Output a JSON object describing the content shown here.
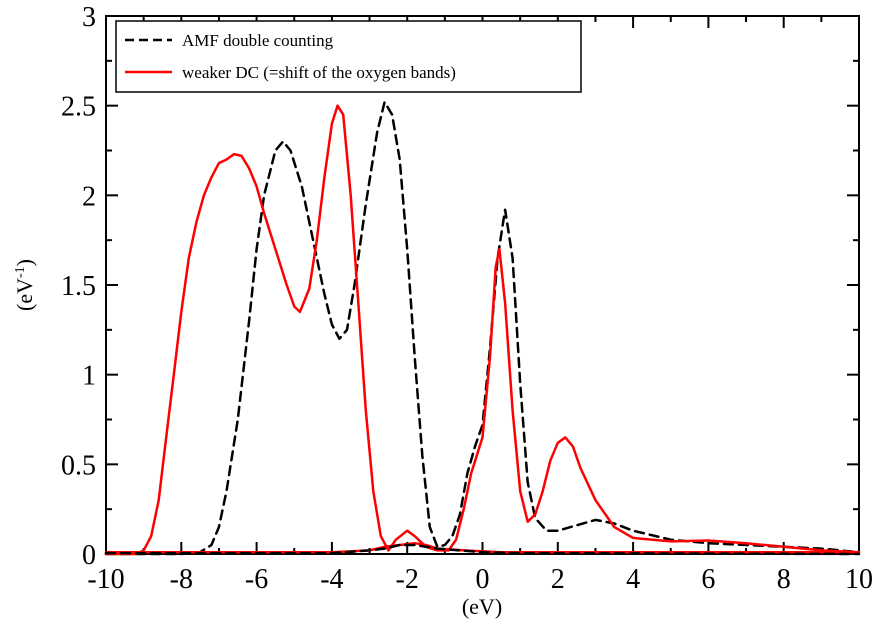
{
  "chart_data": {
    "type": "line",
    "xlabel": "(eV)",
    "ylabel": "(eV",
    "ylabel_sup": "-1",
    "ylabel_close": ")",
    "xlim": [
      -10,
      10
    ],
    "ylim": [
      0,
      3
    ],
    "x_ticks": [
      "-10",
      "-8",
      "-6",
      "-4",
      "-2",
      "0",
      "2",
      "4",
      "6",
      "8",
      "10"
    ],
    "y_ticks": [
      "0",
      "0.5",
      "1",
      "1.5",
      "2",
      "2.5",
      "3"
    ],
    "legend_position": "top-left",
    "series": [
      {
        "name": "AMF double counting",
        "color": "#000000",
        "style": "dashed",
        "points": [
          [
            -10,
            0
          ],
          [
            -8,
            0
          ],
          [
            -7.5,
            0.01
          ],
          [
            -7.2,
            0.05
          ],
          [
            -7,
            0.15
          ],
          [
            -6.8,
            0.35
          ],
          [
            -6.5,
            0.75
          ],
          [
            -6.2,
            1.3
          ],
          [
            -6,
            1.7
          ],
          [
            -5.8,
            2.0
          ],
          [
            -5.5,
            2.25
          ],
          [
            -5.3,
            2.3
          ],
          [
            -5.1,
            2.25
          ],
          [
            -4.8,
            2.05
          ],
          [
            -4.5,
            1.75
          ],
          [
            -4.2,
            1.45
          ],
          [
            -4,
            1.28
          ],
          [
            -3.8,
            1.2
          ],
          [
            -3.6,
            1.25
          ],
          [
            -3.4,
            1.5
          ],
          [
            -3.1,
            1.95
          ],
          [
            -2.8,
            2.35
          ],
          [
            -2.6,
            2.52
          ],
          [
            -2.4,
            2.45
          ],
          [
            -2.2,
            2.2
          ],
          [
            -2,
            1.7
          ],
          [
            -1.8,
            1.1
          ],
          [
            -1.6,
            0.55
          ],
          [
            -1.4,
            0.15
          ],
          [
            -1.2,
            0.04
          ],
          [
            -1,
            0.05
          ],
          [
            -0.8,
            0.1
          ],
          [
            -0.6,
            0.22
          ],
          [
            -0.4,
            0.45
          ],
          [
            -0.2,
            0.6
          ],
          [
            0,
            0.72
          ],
          [
            0.2,
            1.15
          ],
          [
            0.4,
            1.65
          ],
          [
            0.6,
            1.92
          ],
          [
            0.8,
            1.65
          ],
          [
            1,
            0.95
          ],
          [
            1.2,
            0.4
          ],
          [
            1.4,
            0.2
          ],
          [
            1.7,
            0.13
          ],
          [
            2,
            0.13
          ],
          [
            2.5,
            0.16
          ],
          [
            3,
            0.19
          ],
          [
            3.5,
            0.17
          ],
          [
            4,
            0.13
          ],
          [
            5,
            0.08
          ],
          [
            6,
            0.06
          ],
          [
            7,
            0.05
          ],
          [
            8,
            0.04
          ],
          [
            9,
            0.03
          ],
          [
            10,
            0.01
          ]
        ]
      },
      {
        "name": "weaker DC (=shift of the oxygen bands)",
        "color": "#ff0000",
        "style": "solid",
        "points": [
          [
            -10,
            0
          ],
          [
            -9.2,
            0
          ],
          [
            -9,
            0.02
          ],
          [
            -8.8,
            0.1
          ],
          [
            -8.6,
            0.3
          ],
          [
            -8.4,
            0.65
          ],
          [
            -8.2,
            1.0
          ],
          [
            -8,
            1.35
          ],
          [
            -7.8,
            1.65
          ],
          [
            -7.6,
            1.85
          ],
          [
            -7.4,
            2.0
          ],
          [
            -7.2,
            2.1
          ],
          [
            -7,
            2.18
          ],
          [
            -6.8,
            2.2
          ],
          [
            -6.6,
            2.23
          ],
          [
            -6.4,
            2.22
          ],
          [
            -6.2,
            2.15
          ],
          [
            -6,
            2.05
          ],
          [
            -5.8,
            1.9
          ],
          [
            -5.5,
            1.7
          ],
          [
            -5.2,
            1.5
          ],
          [
            -5,
            1.38
          ],
          [
            -4.85,
            1.35
          ],
          [
            -4.6,
            1.48
          ],
          [
            -4.4,
            1.75
          ],
          [
            -4.2,
            2.1
          ],
          [
            -4,
            2.4
          ],
          [
            -3.85,
            2.5
          ],
          [
            -3.7,
            2.45
          ],
          [
            -3.5,
            2.0
          ],
          [
            -3.3,
            1.4
          ],
          [
            -3.1,
            0.8
          ],
          [
            -2.9,
            0.35
          ],
          [
            -2.7,
            0.1
          ],
          [
            -2.5,
            0.02
          ],
          [
            -2.3,
            0.08
          ],
          [
            -2,
            0.13
          ],
          [
            -1.8,
            0.1
          ],
          [
            -1.5,
            0.04
          ],
          [
            -1.2,
            0.02
          ],
          [
            -0.9,
            0.02
          ],
          [
            -0.7,
            0.08
          ],
          [
            -0.5,
            0.25
          ],
          [
            -0.3,
            0.45
          ],
          [
            0,
            0.65
          ],
          [
            0.2,
            1.1
          ],
          [
            0.35,
            1.6
          ],
          [
            0.45,
            1.7
          ],
          [
            0.6,
            1.4
          ],
          [
            0.8,
            0.8
          ],
          [
            1,
            0.35
          ],
          [
            1.2,
            0.18
          ],
          [
            1.4,
            0.22
          ],
          [
            1.6,
            0.35
          ],
          [
            1.8,
            0.52
          ],
          [
            2,
            0.62
          ],
          [
            2.2,
            0.65
          ],
          [
            2.4,
            0.6
          ],
          [
            2.6,
            0.48
          ],
          [
            3,
            0.3
          ],
          [
            3.5,
            0.15
          ],
          [
            4,
            0.09
          ],
          [
            5,
            0.07
          ],
          [
            6,
            0.075
          ],
          [
            7,
            0.06
          ],
          [
            8,
            0.04
          ],
          [
            9,
            0.02
          ],
          [
            10,
            0.01
          ]
        ]
      },
      {
        "name": "",
        "color": "#ff0000",
        "style": "solid",
        "points": [
          [
            -10,
            0.01
          ],
          [
            -4,
            0.01
          ],
          [
            -3,
            0.02
          ],
          [
            -2.6,
            0.04
          ],
          [
            -2.2,
            0.05
          ],
          [
            -1.8,
            0.06
          ],
          [
            -1.5,
            0.05
          ],
          [
            -1.2,
            0.03
          ],
          [
            -0.5,
            0.02
          ],
          [
            0.5,
            0.01
          ],
          [
            10,
            0.01
          ]
        ]
      },
      {
        "name": "",
        "color": "#000000",
        "style": "dashed",
        "points": [
          [
            -10,
            0.005
          ],
          [
            -4,
            0.005
          ],
          [
            -3,
            0.02
          ],
          [
            -2.6,
            0.03
          ],
          [
            -2.2,
            0.05
          ],
          [
            -1.8,
            0.05
          ],
          [
            -1.2,
            0.03
          ],
          [
            0,
            0.01
          ],
          [
            1,
            0.005
          ],
          [
            10,
            0.0
          ]
        ]
      }
    ]
  }
}
